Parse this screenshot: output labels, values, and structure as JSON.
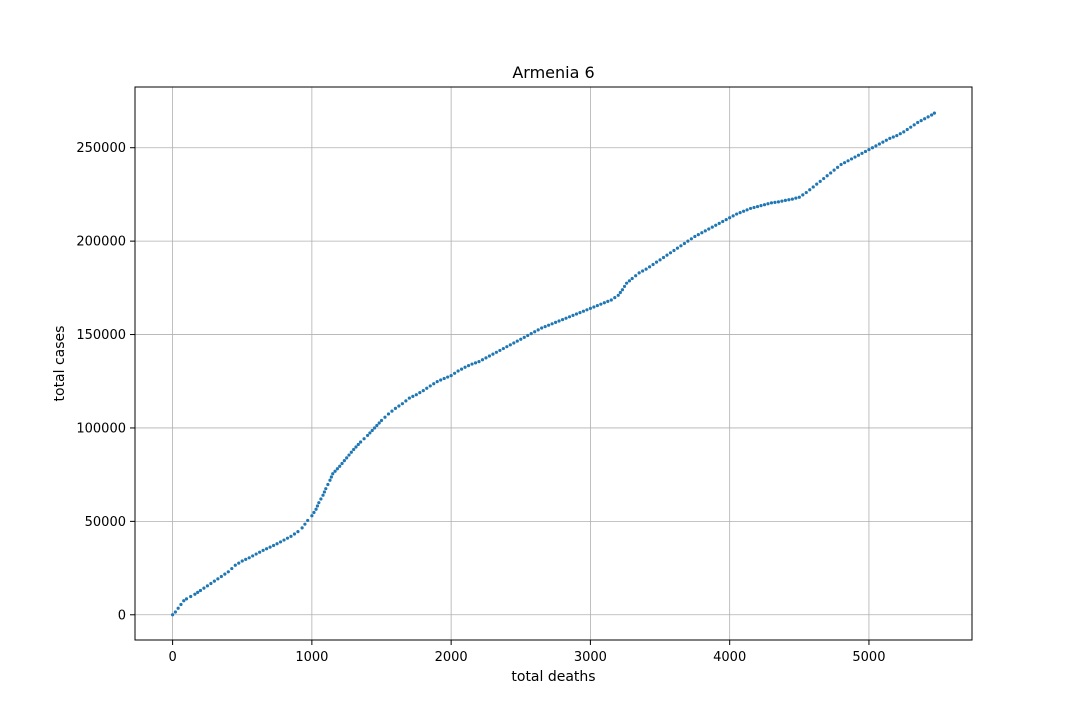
{
  "chart_data": {
    "type": "scatter",
    "title": "Armenia 6",
    "xlabel": "total deaths",
    "ylabel": "total cases",
    "xlim": [
      -270,
      5740
    ],
    "ylim": [
      -13500,
      282500
    ],
    "xticks": [
      0,
      1000,
      2000,
      3000,
      4000,
      5000
    ],
    "xtick_labels": [
      "0",
      "1000",
      "2000",
      "3000",
      "4000",
      "5000"
    ],
    "yticks": [
      0,
      50000,
      100000,
      150000,
      200000,
      250000
    ],
    "ytick_labels": [
      "0",
      "50000",
      "100000",
      "150000",
      "200000",
      "250000"
    ],
    "grid": true,
    "marker_color": "#1f77b4",
    "series": [
      {
        "points": [
          [
            0,
            0
          ],
          [
            20,
            1500
          ],
          [
            40,
            3500
          ],
          [
            60,
            5500
          ],
          [
            80,
            7500
          ],
          [
            100,
            8500
          ],
          [
            130,
            9800
          ],
          [
            160,
            11000
          ],
          [
            200,
            13000
          ],
          [
            250,
            15500
          ],
          [
            300,
            18000
          ],
          [
            350,
            20500
          ],
          [
            400,
            23000
          ],
          [
            450,
            26500
          ],
          [
            500,
            28800
          ],
          [
            550,
            30500
          ],
          [
            600,
            32500
          ],
          [
            650,
            34500
          ],
          [
            700,
            36200
          ],
          [
            750,
            38000
          ],
          [
            800,
            40000
          ],
          [
            850,
            42000
          ],
          [
            900,
            44500
          ],
          [
            930,
            46500
          ],
          [
            950,
            48500
          ],
          [
            970,
            50500
          ],
          [
            1000,
            53000
          ],
          [
            1030,
            56500
          ],
          [
            1050,
            60000
          ],
          [
            1080,
            64000
          ],
          [
            1100,
            67500
          ],
          [
            1130,
            72000
          ],
          [
            1150,
            75500
          ],
          [
            1200,
            79500
          ],
          [
            1250,
            84000
          ],
          [
            1300,
            88500
          ],
          [
            1350,
            92500
          ],
          [
            1400,
            96000
          ],
          [
            1450,
            100000
          ],
          [
            1500,
            104000
          ],
          [
            1550,
            107500
          ],
          [
            1600,
            110500
          ],
          [
            1650,
            113000
          ],
          [
            1700,
            116000
          ],
          [
            1750,
            117800
          ],
          [
            1800,
            120000
          ],
          [
            1850,
            122500
          ],
          [
            1900,
            124800
          ],
          [
            1950,
            126500
          ],
          [
            2000,
            128000
          ],
          [
            2050,
            130500
          ],
          [
            2100,
            132500
          ],
          [
            2150,
            134200
          ],
          [
            2200,
            135500
          ],
          [
            2250,
            137500
          ],
          [
            2300,
            139500
          ],
          [
            2350,
            141500
          ],
          [
            2400,
            143500
          ],
          [
            2450,
            145500
          ],
          [
            2500,
            147500
          ],
          [
            2550,
            149500
          ],
          [
            2600,
            151500
          ],
          [
            2650,
            153500
          ],
          [
            2700,
            155000
          ],
          [
            2750,
            156500
          ],
          [
            2800,
            158000
          ],
          [
            2850,
            159500
          ],
          [
            2900,
            161000
          ],
          [
            2950,
            162500
          ],
          [
            3000,
            164000
          ],
          [
            3050,
            165500
          ],
          [
            3100,
            167000
          ],
          [
            3150,
            168500
          ],
          [
            3200,
            171000
          ],
          [
            3230,
            174000
          ],
          [
            3260,
            177500
          ],
          [
            3300,
            180000
          ],
          [
            3350,
            183000
          ],
          [
            3400,
            185000
          ],
          [
            3450,
            187500
          ],
          [
            3500,
            190000
          ],
          [
            3550,
            192500
          ],
          [
            3600,
            195000
          ],
          [
            3650,
            197500
          ],
          [
            3700,
            200000
          ],
          [
            3750,
            202500
          ],
          [
            3800,
            204500
          ],
          [
            3850,
            206500
          ],
          [
            3900,
            208500
          ],
          [
            3950,
            210500
          ],
          [
            4000,
            212500
          ],
          [
            4050,
            214500
          ],
          [
            4100,
            216000
          ],
          [
            4150,
            217500
          ],
          [
            4200,
            218500
          ],
          [
            4250,
            219500
          ],
          [
            4300,
            220500
          ],
          [
            4350,
            221000
          ],
          [
            4400,
            221800
          ],
          [
            4450,
            222500
          ],
          [
            4500,
            223500
          ],
          [
            4550,
            226000
          ],
          [
            4600,
            229000
          ],
          [
            4650,
            232000
          ],
          [
            4700,
            235000
          ],
          [
            4750,
            238000
          ],
          [
            4800,
            241000
          ],
          [
            4850,
            243000
          ],
          [
            4900,
            245000
          ],
          [
            4950,
            247000
          ],
          [
            5000,
            249000
          ],
          [
            5050,
            251000
          ],
          [
            5100,
            253000
          ],
          [
            5150,
            255000
          ],
          [
            5200,
            256500
          ],
          [
            5250,
            258500
          ],
          [
            5300,
            261000
          ],
          [
            5350,
            263500
          ],
          [
            5400,
            265500
          ],
          [
            5450,
            267500
          ],
          [
            5470,
            268500
          ]
        ]
      }
    ]
  }
}
